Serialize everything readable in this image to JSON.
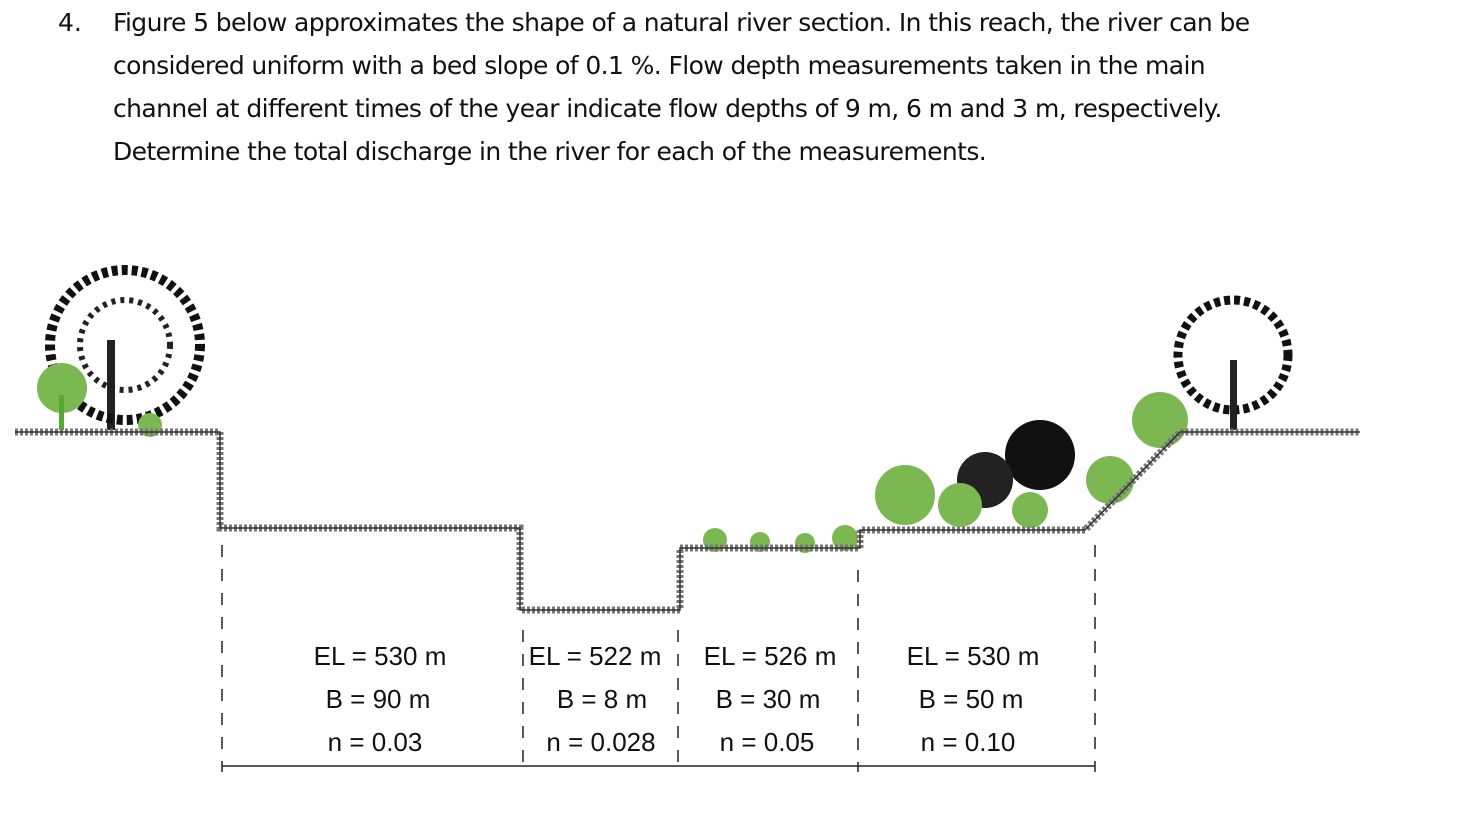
{
  "question": {
    "number": "4.",
    "lines": [
      "Figure 5 below approximates the shape of a natural river section.  In this reach, the river can be",
      "considered uniform with a bed slope of 0.1 %.  Flow depth measurements taken in the main",
      "channel at different times of the year indicate flow depths of 9 m, 6 m and 3 m, respectively.",
      "Determine the total discharge in the river for each of the measurements."
    ]
  },
  "sections": [
    {
      "el": "EL = 530 m",
      "b": "B = 90 m",
      "n": "n = 0.03"
    },
    {
      "el": "EL = 522 m",
      "b": "B = 8 m",
      "n": "n = 0.028"
    },
    {
      "el": "EL = 526 m",
      "b": "B = 30 m",
      "n": "n = 0.05"
    },
    {
      "el": "EL = 530 m",
      "b": "B = 50 m",
      "n": "n = 0.10"
    }
  ]
}
